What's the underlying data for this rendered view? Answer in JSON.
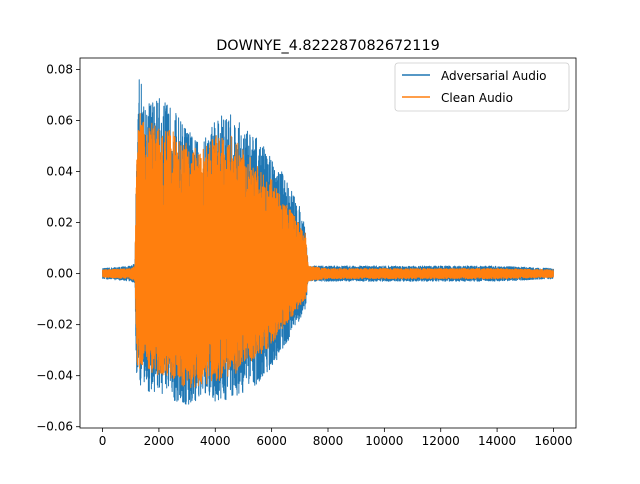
{
  "chart_data": {
    "type": "line",
    "title": "DOWNYE_4.822287082672119",
    "xlabel": "",
    "ylabel": "",
    "xlim": [
      -800,
      16800
    ],
    "ylim": [
      -0.0605,
      0.0845
    ],
    "x_ticks": [
      0,
      2000,
      4000,
      6000,
      8000,
      10000,
      12000,
      14000,
      16000
    ],
    "x_tick_labels": [
      "0",
      "2000",
      "4000",
      "6000",
      "8000",
      "10000",
      "12000",
      "14000",
      "16000"
    ],
    "y_ticks": [
      -0.06,
      -0.04,
      -0.02,
      0.0,
      0.02,
      0.04,
      0.06,
      0.08
    ],
    "y_tick_labels": [
      "−0.06",
      "−0.04",
      "−0.02",
      "0.00",
      "0.02",
      "0.04",
      "0.06",
      "0.08"
    ],
    "grid": false,
    "legend_position": "top-right",
    "series": [
      {
        "name": "Adversarial Audio",
        "color": "#1f77b4",
        "x": [
          0,
          1000,
          1150,
          1200,
          1300,
          1500,
          2000,
          2500,
          3000,
          3500,
          4000,
          4500,
          5000,
          5500,
          6000,
          6500,
          7000,
          7200,
          7300,
          8000,
          10000,
          12000,
          14000,
          16000
        ],
        "upper": [
          0.002,
          0.003,
          0.004,
          0.05,
          0.08,
          0.068,
          0.069,
          0.065,
          0.057,
          0.05,
          0.062,
          0.063,
          0.058,
          0.053,
          0.046,
          0.038,
          0.026,
          0.018,
          0.003,
          0.003,
          0.003,
          0.003,
          0.003,
          0.002
        ],
        "lower": [
          -0.002,
          -0.003,
          -0.004,
          -0.04,
          -0.044,
          -0.046,
          -0.047,
          -0.05,
          -0.053,
          -0.049,
          -0.051,
          -0.049,
          -0.047,
          -0.043,
          -0.037,
          -0.028,
          -0.018,
          -0.014,
          -0.003,
          -0.003,
          -0.003,
          -0.003,
          -0.003,
          -0.002
        ]
      },
      {
        "name": "Clean Audio",
        "color": "#ff7f0e",
        "x": [
          0,
          1000,
          1150,
          1200,
          1300,
          1500,
          2000,
          2500,
          3000,
          3500,
          4000,
          4500,
          5000,
          5500,
          6000,
          6500,
          7000,
          7200,
          7300,
          8000,
          10000,
          12000,
          14000,
          16000
        ],
        "upper": [
          0.0015,
          0.002,
          0.003,
          0.045,
          0.064,
          0.06,
          0.058,
          0.056,
          0.051,
          0.048,
          0.054,
          0.055,
          0.049,
          0.042,
          0.037,
          0.028,
          0.02,
          0.016,
          0.003,
          0.002,
          0.002,
          0.002,
          0.002,
          0.0015
        ],
        "lower": [
          -0.0015,
          -0.002,
          -0.003,
          -0.035,
          -0.037,
          -0.038,
          -0.04,
          -0.042,
          -0.045,
          -0.044,
          -0.043,
          -0.04,
          -0.038,
          -0.033,
          -0.028,
          -0.02,
          -0.013,
          -0.01,
          -0.003,
          -0.002,
          -0.002,
          -0.002,
          -0.002,
          -0.0015
        ]
      }
    ]
  }
}
